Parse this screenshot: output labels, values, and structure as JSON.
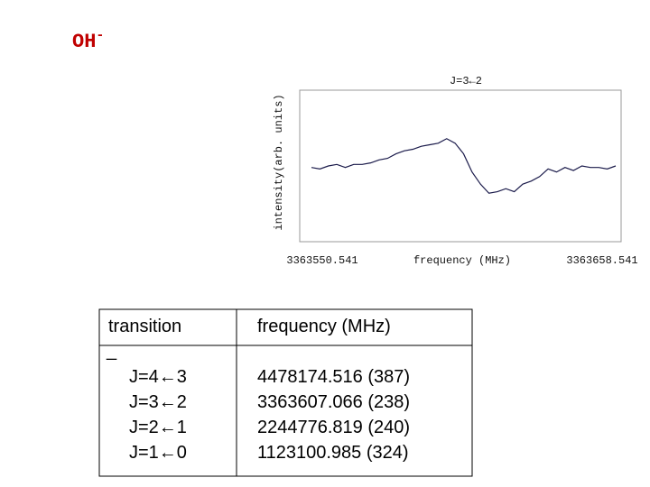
{
  "title": {
    "text": "OH",
    "superscript": "-"
  },
  "chart_data": {
    "type": "line",
    "annotation": "J=3←2",
    "xlabel": "frequency (MHz)",
    "ylabel": "intensity(arb. units)",
    "xlim": [
      3363550.541,
      3363658.541
    ],
    "xticks": [
      3363550.541,
      3363658.541
    ],
    "ylim": [
      0,
      1
    ],
    "x": [
      3363550.541,
      3363553.541,
      3363556.541,
      3363559.541,
      3363562.541,
      3363565.541,
      3363568.541,
      3363571.541,
      3363574.541,
      3363577.541,
      3363580.541,
      3363583.541,
      3363586.541,
      3363589.541,
      3363592.541,
      3363595.541,
      3363598.541,
      3363601.541,
      3363604.541,
      3363607.541,
      3363610.541,
      3363613.541,
      3363616.541,
      3363619.541,
      3363622.541,
      3363625.541,
      3363628.541,
      3363631.541,
      3363634.541,
      3363637.541,
      3363640.541,
      3363643.541,
      3363646.541,
      3363649.541,
      3363652.541,
      3363655.541,
      3363658.541
    ],
    "series": [
      {
        "name": "intensity",
        "color": "#1a1a4a",
        "values": [
          0.49,
          0.48,
          0.5,
          0.51,
          0.49,
          0.51,
          0.51,
          0.52,
          0.54,
          0.55,
          0.58,
          0.6,
          0.61,
          0.63,
          0.64,
          0.65,
          0.68,
          0.65,
          0.58,
          0.46,
          0.38,
          0.32,
          0.33,
          0.35,
          0.33,
          0.38,
          0.4,
          0.43,
          0.48,
          0.46,
          0.49,
          0.47,
          0.5,
          0.49,
          0.49,
          0.48,
          0.5
        ]
      }
    ]
  },
  "table": {
    "header": [
      "transition",
      "frequency (MHz)"
    ],
    "separator": "_",
    "rows": [
      [
        "J=4←3",
        "4478174.516 (387)"
      ],
      [
        "J=3←2",
        "3363607.066 (238)"
      ],
      [
        "J=2←1",
        "2244776.819 (240)"
      ],
      [
        "J=1←0",
        "1123100.985 (324)"
      ]
    ]
  }
}
